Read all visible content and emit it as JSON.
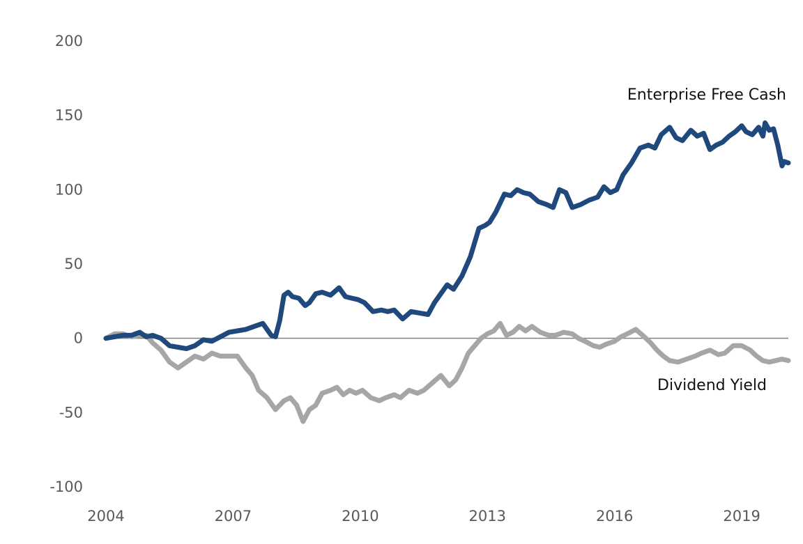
{
  "chart_data": {
    "type": "line",
    "xlabel": "",
    "ylabel": "",
    "xlim": [
      2004,
      2020.1
    ],
    "ylim": [
      -100,
      200
    ],
    "yticks": [
      200,
      150,
      100,
      50,
      0,
      -50,
      -100
    ],
    "xticks": [
      2004,
      2007,
      2010,
      2013,
      2016,
      2019
    ],
    "grid": false,
    "zero_line": true,
    "legend": "none",
    "series": [
      {
        "name": "Enterprise Free Cash",
        "color": "#1F497D",
        "x": [
          2004.0,
          2004.2,
          2004.4,
          2004.6,
          2004.8,
          2004.95,
          2005.1,
          2005.3,
          2005.5,
          2005.7,
          2005.9,
          2006.1,
          2006.3,
          2006.5,
          2006.7,
          2006.9,
          2007.1,
          2007.3,
          2007.5,
          2007.7,
          2007.9,
          2008.0,
          2008.1,
          2008.2,
          2008.3,
          2008.4,
          2008.55,
          2008.7,
          2008.8,
          2008.95,
          2009.1,
          2009.3,
          2009.5,
          2009.65,
          2009.8,
          2009.95,
          2010.1,
          2010.3,
          2010.5,
          2010.65,
          2010.8,
          2011.0,
          2011.2,
          2011.4,
          2011.6,
          2011.75,
          2011.9,
          2012.05,
          2012.2,
          2012.4,
          2012.6,
          2012.8,
          2012.95,
          2013.05,
          2013.2,
          2013.4,
          2013.55,
          2013.7,
          2013.85,
          2014.0,
          2014.2,
          2014.4,
          2014.55,
          2014.7,
          2014.85,
          2015.0,
          2015.2,
          2015.4,
          2015.6,
          2015.75,
          2015.9,
          2016.05,
          2016.2,
          2016.4,
          2016.6,
          2016.8,
          2016.95,
          2017.1,
          2017.3,
          2017.45,
          2017.6,
          2017.8,
          2017.95,
          2018.1,
          2018.25,
          2018.4,
          2018.55,
          2018.7,
          2018.85,
          2019.0,
          2019.1,
          2019.25,
          2019.4,
          2019.5,
          2019.55,
          2019.65,
          2019.75,
          2019.85,
          2019.95,
          2020.0,
          2020.1
        ],
        "values": [
          0,
          1,
          2,
          2,
          4,
          1,
          2,
          0,
          -5,
          -6,
          -7,
          -5,
          -1,
          -2,
          1,
          4,
          5,
          6,
          8,
          10,
          2,
          1,
          12,
          29,
          31,
          28,
          27,
          22,
          24,
          30,
          31,
          29,
          34,
          28,
          27,
          26,
          24,
          18,
          19,
          18,
          19,
          13,
          18,
          17,
          16,
          24,
          30,
          36,
          33,
          42,
          55,
          74,
          76,
          78,
          85,
          97,
          96,
          100,
          98,
          97,
          92,
          90,
          88,
          100,
          98,
          88,
          90,
          93,
          95,
          102,
          98,
          100,
          110,
          118,
          128,
          130,
          128,
          137,
          142,
          135,
          133,
          140,
          136,
          138,
          127,
          130,
          132,
          136,
          139,
          143,
          139,
          137,
          142,
          136,
          145,
          140,
          141,
          130,
          116,
          119,
          118
        ]
      },
      {
        "name": "Dividend Yield",
        "color": "#A6A6A6",
        "x": [
          2004.0,
          2004.2,
          2004.4,
          2004.6,
          2004.8,
          2004.95,
          2005.1,
          2005.3,
          2005.5,
          2005.7,
          2005.9,
          2006.1,
          2006.3,
          2006.5,
          2006.7,
          2006.9,
          2007.1,
          2007.3,
          2007.45,
          2007.6,
          2007.8,
          2008.0,
          2008.2,
          2008.35,
          2008.5,
          2008.65,
          2008.8,
          2008.95,
          2009.1,
          2009.3,
          2009.45,
          2009.6,
          2009.75,
          2009.9,
          2010.05,
          2010.25,
          2010.45,
          2010.6,
          2010.8,
          2010.95,
          2011.15,
          2011.35,
          2011.5,
          2011.7,
          2011.9,
          2012.1,
          2012.25,
          2012.4,
          2012.55,
          2012.7,
          2012.85,
          2013.0,
          2013.15,
          2013.3,
          2013.45,
          2013.6,
          2013.75,
          2013.9,
          2014.05,
          2014.25,
          2014.45,
          2014.6,
          2014.8,
          2015.0,
          2015.15,
          2015.3,
          2015.5,
          2015.65,
          2015.8,
          2016.0,
          2016.15,
          2016.3,
          2016.5,
          2016.7,
          2016.85,
          2017.0,
          2017.15,
          2017.3,
          2017.5,
          2017.7,
          2017.9,
          2018.05,
          2018.25,
          2018.45,
          2018.6,
          2018.8,
          2019.0,
          2019.2,
          2019.35,
          2019.5,
          2019.65,
          2019.8,
          2019.95,
          2020.1
        ],
        "values": [
          0,
          3,
          3,
          1,
          2,
          2,
          -3,
          -8,
          -16,
          -20,
          -16,
          -12,
          -14,
          -10,
          -12,
          -12,
          -12,
          -20,
          -25,
          -35,
          -40,
          -48,
          -42,
          -40,
          -45,
          -56,
          -48,
          -45,
          -37,
          -35,
          -33,
          -38,
          -35,
          -37,
          -35,
          -40,
          -42,
          -40,
          -38,
          -40,
          -35,
          -37,
          -35,
          -30,
          -25,
          -32,
          -28,
          -20,
          -10,
          -5,
          0,
          3,
          5,
          10,
          2,
          4,
          8,
          5,
          8,
          4,
          2,
          2,
          4,
          3,
          0,
          -2,
          -5,
          -6,
          -4,
          -2,
          1,
          3,
          6,
          1,
          -3,
          -8,
          -12,
          -15,
          -16,
          -14,
          -12,
          -10,
          -8,
          -11,
          -10,
          -5,
          -5,
          -8,
          -12,
          -15,
          -16,
          -15,
          -14,
          -15
        ]
      }
    ],
    "annotations": [
      {
        "text": "Enterprise Free Cash",
        "series": "Enterprise Free Cash"
      },
      {
        "text": "Dividend Yield",
        "series": "Dividend Yield"
      }
    ]
  }
}
